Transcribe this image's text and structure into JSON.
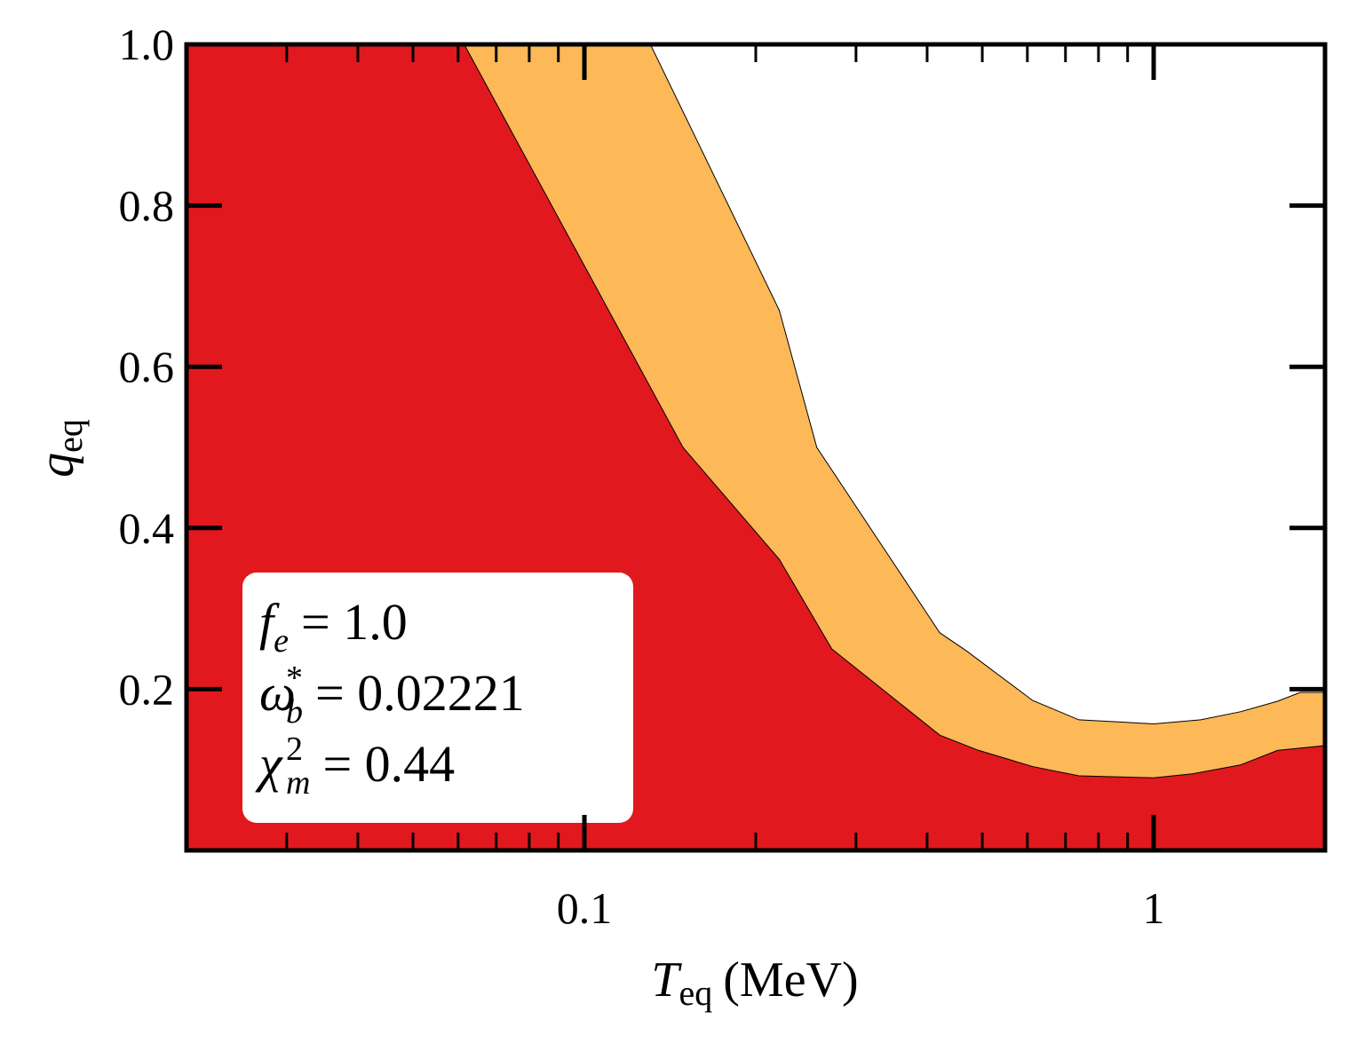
{
  "chart_data": {
    "type": "area",
    "x_label": {
      "symbol": "T",
      "sub": "eq",
      "unit": "(MeV)"
    },
    "y_label": {
      "symbol": "q",
      "sub": "eq"
    },
    "xscale": "log",
    "xlim": [
      0.02,
      2
    ],
    "ylim": [
      0,
      1
    ],
    "xticks": [
      0.1,
      1
    ],
    "xminorticks": [
      0.03,
      0.04,
      0.05,
      0.06,
      0.07,
      0.08,
      0.09,
      0.2,
      0.3,
      0.4,
      0.5,
      0.6,
      0.7,
      0.8,
      0.9,
      2
    ],
    "yticks": [
      0.2,
      0.4,
      0.6,
      0.8,
      {
        "value": 1,
        "label": "1.0"
      }
    ],
    "series": [
      {
        "color": "#fdb857",
        "x": [
          0.1306,
          0.22,
          0.256,
          0.421,
          0.468,
          0.613,
          0.739,
          1,
          1.21,
          1.42,
          1.65,
          1.81,
          2
        ],
        "values": [
          1.0,
          0.67,
          0.5,
          0.27,
          0.248,
          0.186,
          0.162,
          0.157,
          0.162,
          0.172,
          0.185,
          0.196,
          0.196
        ]
      },
      {
        "color": "#e1191e",
        "x": [
          0.0615,
          0.149,
          0.22,
          0.272,
          0.421,
          0.493,
          0.613,
          0.739,
          1,
          1.17,
          1.42,
          1.65,
          2
        ],
        "values": [
          1.0,
          0.5,
          0.361,
          0.25,
          0.143,
          0.124,
          0.104,
          0.0925,
          0.09,
          0.095,
          0.106,
          0.124,
          0.13
        ]
      }
    ],
    "annotations": [
      {
        "symbol": "f",
        "sub": "e",
        "text": "= 1.0"
      },
      {
        "symbol": "ω",
        "sub": "b",
        "sup": "*",
        "text": "= 0.02221"
      },
      {
        "symbol": "χ",
        "sub": "m",
        "sup": "2",
        "text": "= 0.44"
      }
    ]
  }
}
